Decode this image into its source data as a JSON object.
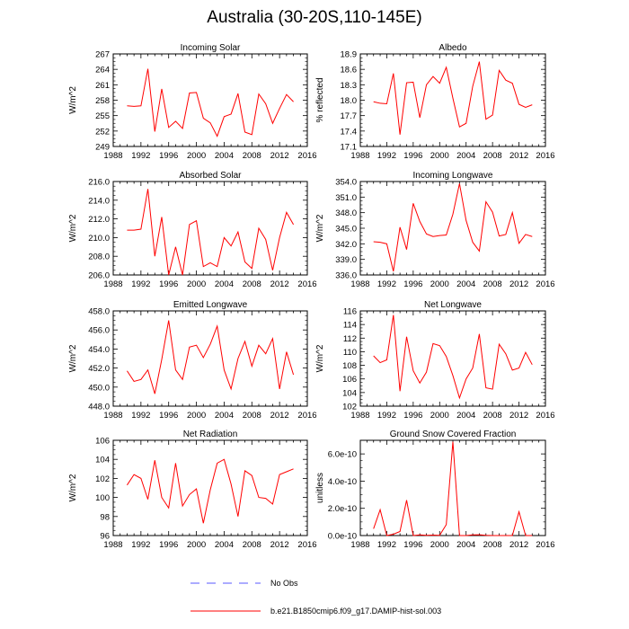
{
  "figure": {
    "title": "Australia (30-20S,110-145E)",
    "line_color": "#ff0000",
    "obs_color": "#5a5aff",
    "legend": {
      "obs_label": "No Obs",
      "model_label": "b.e21.B1850cmip6.f09_g17.DAMIP-hist-sol.003"
    }
  },
  "chart_data": [
    {
      "type": "line",
      "title": "Incoming Solar",
      "ylabel": "W/m^2",
      "xlim": [
        1988,
        2016
      ],
      "xticks": [
        1988,
        1992,
        1996,
        2000,
        2004,
        2008,
        2012,
        2016
      ],
      "ylim": [
        249,
        267
      ],
      "yticks": [
        249,
        252,
        255,
        258,
        261,
        264,
        267
      ],
      "ytick_labels": [
        "249",
        "252",
        "255",
        "258",
        "261",
        "264",
        "267"
      ],
      "x": [
        1990,
        1991,
        1992,
        1993,
        1994,
        1995,
        1996,
        1997,
        1998,
        1999,
        2000,
        2001,
        2002,
        2003,
        2004,
        2005,
        2006,
        2007,
        2008,
        2009,
        2010,
        2011,
        2012,
        2013,
        2014
      ],
      "y": [
        256.9,
        256.8,
        256.9,
        264.1,
        251.9,
        260.2,
        252.7,
        253.9,
        252.5,
        259.4,
        259.5,
        254.5,
        253.6,
        251.0,
        254.8,
        255.3,
        259.3,
        251.8,
        251.3,
        259.2,
        257.3,
        253.5,
        256.4,
        259.1,
        257.7
      ]
    },
    {
      "type": "line",
      "title": "Albedo",
      "ylabel": "% reflected",
      "xlim": [
        1988,
        2016
      ],
      "xticks": [
        1988,
        1992,
        1996,
        2000,
        2004,
        2008,
        2012,
        2016
      ],
      "ylim": [
        17.1,
        18.9
      ],
      "yticks": [
        17.1,
        17.4,
        17.7,
        18.0,
        18.3,
        18.6,
        18.9
      ],
      "ytick_labels": [
        "17.1",
        "17.4",
        "17.7",
        "18.0",
        "18.3",
        "18.6",
        "18.9"
      ],
      "x": [
        1990,
        1991,
        1992,
        1993,
        1994,
        1995,
        1996,
        1997,
        1998,
        1999,
        2000,
        2001,
        2002,
        2003,
        2004,
        2005,
        2006,
        2007,
        2008,
        2009,
        2010,
        2011,
        2012,
        2013,
        2014
      ],
      "y": [
        17.97,
        17.94,
        17.93,
        18.52,
        17.33,
        18.34,
        18.35,
        17.66,
        18.3,
        18.46,
        18.33,
        18.64,
        18.04,
        17.48,
        17.55,
        18.27,
        18.75,
        17.63,
        17.71,
        18.58,
        18.39,
        18.33,
        17.92,
        17.86,
        17.91
      ]
    },
    {
      "type": "line",
      "title": "Absorbed Solar",
      "ylabel": "W/m^2",
      "xlim": [
        1988,
        2016
      ],
      "xticks": [
        1988,
        1992,
        1996,
        2000,
        2004,
        2008,
        2012,
        2016
      ],
      "ylim": [
        206.0,
        216.0
      ],
      "yticks": [
        206,
        208,
        210,
        212,
        214,
        216
      ],
      "ytick_labels": [
        "206.0",
        "208.0",
        "210.0",
        "212.0",
        "214.0",
        "216.0"
      ],
      "x": [
        1990,
        1991,
        1992,
        1993,
        1994,
        1995,
        1996,
        1997,
        1998,
        1999,
        2000,
        2001,
        2002,
        2003,
        2004,
        2005,
        2006,
        2007,
        2008,
        2009,
        2010,
        2011,
        2012,
        2013,
        2014
      ],
      "y": [
        210.8,
        210.8,
        210.9,
        215.2,
        208.0,
        212.2,
        206.0,
        209.0,
        206.0,
        211.4,
        211.8,
        206.9,
        207.3,
        206.9,
        210.0,
        209.1,
        210.6,
        207.4,
        206.7,
        211.0,
        209.8,
        206.5,
        210.0,
        212.7,
        211.4
      ]
    },
    {
      "type": "line",
      "title": "Incoming Longwave",
      "ylabel": "W/m^2",
      "xlim": [
        1988,
        2016
      ],
      "xticks": [
        1988,
        1992,
        1996,
        2000,
        2004,
        2008,
        2012,
        2016
      ],
      "ylim": [
        336.0,
        354.0
      ],
      "yticks": [
        336,
        339,
        342,
        345,
        348,
        351,
        354
      ],
      "ytick_labels": [
        "336.0",
        "339.0",
        "342.0",
        "345.0",
        "348.0",
        "351.0",
        "354.0"
      ],
      "x": [
        1990,
        1991,
        1992,
        1993,
        1994,
        1995,
        1996,
        1997,
        1998,
        1999,
        2000,
        2001,
        2002,
        2003,
        2004,
        2005,
        2006,
        2007,
        2008,
        2009,
        2010,
        2011,
        2012,
        2013,
        2014
      ],
      "y": [
        342.4,
        342.3,
        342.0,
        336.7,
        345.2,
        340.9,
        349.8,
        346.3,
        343.9,
        343.4,
        343.6,
        343.7,
        347.7,
        353.6,
        346.5,
        342.3,
        340.6,
        350.1,
        348.1,
        343.5,
        343.8,
        348.0,
        342.1,
        343.8,
        343.4
      ]
    },
    {
      "type": "line",
      "title": "Emitted Longwave",
      "ylabel": "W/m^2",
      "xlim": [
        1988,
        2016
      ],
      "xticks": [
        1988,
        1992,
        1996,
        2000,
        2004,
        2008,
        2012,
        2016
      ],
      "ylim": [
        448.0,
        458.0
      ],
      "yticks": [
        448,
        450,
        452,
        454,
        456,
        458
      ],
      "ytick_labels": [
        "448.0",
        "450.0",
        "452.0",
        "454.0",
        "456.0",
        "458.0"
      ],
      "x": [
        1990,
        1991,
        1992,
        1993,
        1994,
        1995,
        1996,
        1997,
        1998,
        1999,
        2000,
        2001,
        2002,
        2003,
        2004,
        2005,
        2006,
        2007,
        2008,
        2009,
        2010,
        2011,
        2012,
        2013,
        2014
      ],
      "y": [
        451.7,
        450.6,
        450.8,
        451.8,
        449.3,
        452.9,
        457.0,
        451.8,
        450.8,
        454.2,
        454.4,
        453.1,
        454.5,
        456.4,
        451.8,
        449.8,
        453.0,
        454.8,
        452.2,
        454.4,
        453.5,
        455.1,
        449.8,
        453.7,
        451.3
      ]
    },
    {
      "type": "line",
      "title": "Net Longwave",
      "ylabel": "W/m^2",
      "xlim": [
        1988,
        2016
      ],
      "xticks": [
        1988,
        1992,
        1996,
        2000,
        2004,
        2008,
        2012,
        2016
      ],
      "ylim": [
        102,
        116
      ],
      "yticks": [
        102,
        104,
        106,
        108,
        110,
        112,
        114,
        116
      ],
      "ytick_labels": [
        "102",
        "104",
        "106",
        "108",
        "110",
        "112",
        "114",
        "116"
      ],
      "x": [
        1990,
        1991,
        1992,
        1993,
        1994,
        1995,
        1996,
        1997,
        1998,
        1999,
        2000,
        2001,
        2002,
        2003,
        2004,
        2005,
        2006,
        2007,
        2008,
        2009,
        2010,
        2011,
        2012,
        2013,
        2014
      ],
      "y": [
        109.4,
        108.4,
        108.8,
        115.4,
        104.2,
        112.2,
        107.2,
        105.4,
        107.0,
        111.2,
        110.9,
        109.3,
        106.5,
        103.2,
        106.0,
        107.6,
        112.6,
        104.7,
        104.5,
        111.1,
        109.7,
        107.3,
        107.6,
        109.9,
        108.1
      ]
    },
    {
      "type": "line",
      "title": "Net Radiation",
      "ylabel": "W/m^2",
      "xlim": [
        1988,
        2016
      ],
      "xticks": [
        1988,
        1992,
        1996,
        2000,
        2004,
        2008,
        2012,
        2016
      ],
      "ylim": [
        96,
        106
      ],
      "yticks": [
        96,
        98,
        100,
        102,
        104,
        106
      ],
      "ytick_labels": [
        "96",
        "98",
        "100",
        "102",
        "104",
        "106"
      ],
      "x": [
        1990,
        1991,
        1992,
        1993,
        1994,
        1995,
        1996,
        1997,
        1998,
        1999,
        2000,
        2001,
        2002,
        2003,
        2004,
        2005,
        2006,
        2007,
        2008,
        2009,
        2010,
        2011,
        2012,
        2013,
        2014
      ],
      "y": [
        101.3,
        102.4,
        102.0,
        99.8,
        103.9,
        100.0,
        98.9,
        103.6,
        99.1,
        100.3,
        100.9,
        97.3,
        100.8,
        103.6,
        104.0,
        101.4,
        98.0,
        102.8,
        102.3,
        100.0,
        99.9,
        99.3,
        102.4,
        102.7,
        103.0
      ]
    },
    {
      "type": "line",
      "title": "Ground Snow Covered Fraction",
      "ylabel": "unitless",
      "xlim": [
        1988,
        2016
      ],
      "xticks": [
        1988,
        1992,
        1996,
        2000,
        2004,
        2008,
        2012,
        2016
      ],
      "ylim": [
        0,
        7e-10
      ],
      "yticks": [
        0,
        2e-10,
        4e-10,
        6e-10
      ],
      "ytick_labels": [
        "0.0e-10",
        "2.0e-10",
        "4.0e-10",
        "6.0e-10"
      ],
      "x": [
        1990,
        1991,
        1992,
        1993,
        1994,
        1995,
        1996,
        1997,
        1998,
        1999,
        2000,
        2001,
        2002,
        2003,
        2004,
        2005,
        2006,
        2007,
        2008,
        2009,
        2010,
        2011,
        2012,
        2013,
        2014
      ],
      "y": [
        5e-11,
        1.9e-10,
        0,
        1e-11,
        3e-11,
        2.6e-10,
        0,
        5e-12,
        2e-12,
        3e-12,
        2e-12,
        8e-11,
        6.9e-10,
        0,
        0,
        5e-12,
        6e-12,
        2e-12,
        0,
        0,
        0,
        0,
        1.75e-10,
        0,
        0
      ]
    }
  ]
}
